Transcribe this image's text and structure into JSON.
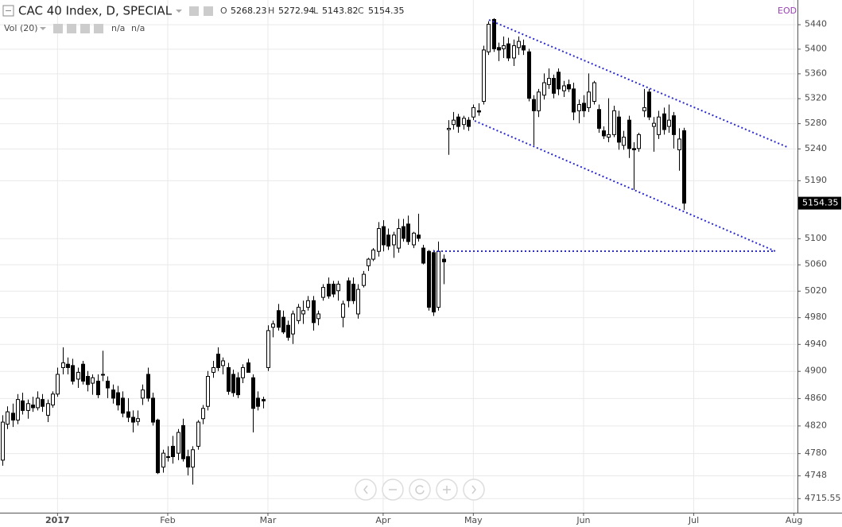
{
  "chart_data": {
    "type": "candlestick",
    "title": "CAC 40 Index, D, SPECIAL",
    "ohlc_labels": [
      "O",
      "H",
      "L",
      "C"
    ],
    "indicator": "Vol (20)",
    "indicator_values": [
      "n/a",
      "n/a"
    ],
    "data_source": "EOD",
    "up_color": "#ffffff",
    "down_color": "#000000",
    "edge_color": "#000000",
    "grid": true,
    "log_scale": true,
    "xlim": [
      -0.48,
      158.7
    ],
    "xticks": [
      {
        "value": 11,
        "label": "2017"
      },
      {
        "value": 33,
        "label": "Feb"
      },
      {
        "value": 53,
        "label": "Mar"
      },
      {
        "value": 76,
        "label": "Apr"
      },
      {
        "value": 94,
        "label": "May"
      },
      {
        "value": 116,
        "label": "Jun"
      },
      {
        "value": 138,
        "label": "Jul"
      },
      {
        "value": 158,
        "label": "Aug"
      }
    ],
    "ylim": [
      4695,
      5480
    ],
    "yticks": [
      5440,
      5400,
      5360,
      5320,
      5280,
      5240,
      5190,
      5100,
      5060,
      5020,
      4980,
      4940,
      4900,
      4860,
      4820,
      4780,
      4748,
      4715.55
    ],
    "values": [
      [
        4770,
        4835,
        4762,
        4825
      ],
      [
        4822,
        4848,
        4815,
        4840
      ],
      [
        4838,
        4852,
        4818,
        4828
      ],
      [
        4828,
        4866,
        4822,
        4858
      ],
      [
        4856,
        4868,
        4836,
        4842
      ],
      [
        4842,
        4858,
        4830,
        4852
      ],
      [
        4850,
        4862,
        4840,
        4846
      ],
      [
        4846,
        4870,
        4842,
        4860
      ],
      [
        4858,
        4866,
        4840,
        4848
      ],
      [
        4835,
        4858,
        4825,
        4852
      ],
      [
        4850,
        4870,
        4846,
        4866
      ],
      [
        4866,
        4905,
        4862,
        4895
      ],
      [
        4905,
        4935,
        4895,
        4912
      ],
      [
        4910,
        4920,
        4895,
        4905
      ],
      [
        4908,
        4918,
        4880,
        4885
      ],
      [
        4888,
        4905,
        4875,
        4898
      ],
      [
        4910,
        4915,
        4880,
        4885
      ],
      [
        4892,
        4900,
        4870,
        4880
      ],
      [
        4882,
        4895,
        4865,
        4890
      ],
      [
        4885,
        4895,
        4860,
        4865
      ],
      [
        4895,
        4930,
        4885,
        4895
      ],
      [
        4885,
        4892,
        4860,
        4875
      ],
      [
        4872,
        4880,
        4852,
        4860
      ],
      [
        4868,
        4878,
        4842,
        4850
      ],
      [
        4860,
        4870,
        4832,
        4838
      ],
      [
        4840,
        4860,
        4825,
        4832
      ],
      [
        4832,
        4842,
        4810,
        4825
      ],
      [
        4826,
        4842,
        4820,
        4830
      ],
      [
        4860,
        4880,
        4850,
        4872
      ],
      [
        4895,
        4905,
        4855,
        4860
      ],
      [
        4860,
        4868,
        4820,
        4825
      ],
      [
        4828,
        4830,
        4750,
        4752
      ],
      [
        4760,
        4785,
        4752,
        4780
      ],
      [
        4775,
        4790,
        4768,
        4775
      ],
      [
        4790,
        4805,
        4765,
        4775
      ],
      [
        4780,
        4815,
        4770,
        4810
      ],
      [
        4820,
        4830,
        4768,
        4772
      ],
      [
        4775,
        4785,
        4748,
        4760
      ],
      [
        4760,
        4790,
        4735,
        4785
      ],
      [
        4790,
        4828,
        4785,
        4825
      ],
      [
        4830,
        4850,
        4822,
        4845
      ],
      [
        4848,
        4900,
        4842,
        4892
      ],
      [
        4898,
        4915,
        4890,
        4905
      ],
      [
        4925,
        4935,
        4900,
        4905
      ],
      [
        4908,
        4920,
        4895,
        4915
      ],
      [
        4905,
        4912,
        4865,
        4870
      ],
      [
        4895,
        4902,
        4862,
        4868
      ],
      [
        4890,
        4898,
        4860,
        4865
      ],
      [
        4890,
        4910,
        4882,
        4905
      ],
      [
        4912,
        4918,
        4900,
        4898
      ],
      [
        4890,
        4895,
        4810,
        4845
      ],
      [
        4860,
        4870,
        4842,
        4848
      ],
      [
        4858,
        4862,
        4845,
        4856
      ],
      [
        4905,
        4968,
        4900,
        4960
      ],
      [
        4965,
        4975,
        4950,
        4970
      ],
      [
        4990,
        5000,
        4960,
        4965
      ],
      [
        4980,
        4990,
        4955,
        4958
      ],
      [
        4968,
        4975,
        4945,
        4950
      ],
      [
        4955,
        4990,
        4940,
        4985
      ],
      [
        4975,
        5000,
        4970,
        4995
      ],
      [
        4985,
        5005,
        4970,
        4990
      ],
      [
        4995,
        5012,
        4990,
        5005
      ],
      [
        5005,
        5012,
        4960,
        4972
      ],
      [
        4978,
        4990,
        4968,
        4985
      ],
      [
        5010,
        5030,
        5005,
        5025
      ],
      [
        5030,
        5040,
        5008,
        5012
      ],
      [
        5030,
        5035,
        5010,
        5015
      ],
      [
        5020,
        5035,
        5005,
        5030
      ],
      [
        4980,
        5005,
        4965,
        5000
      ],
      [
        5035,
        5040,
        4995,
        5005
      ],
      [
        5030,
        5040,
        5000,
        5005
      ],
      [
        4985,
        5030,
        4978,
        5022
      ],
      [
        5028,
        5050,
        5025,
        5045
      ],
      [
        5058,
        5070,
        5050,
        5068
      ],
      [
        5068,
        5085,
        5065,
        5082
      ],
      [
        5080,
        5125,
        5072,
        5115
      ],
      [
        5118,
        5128,
        5080,
        5090
      ],
      [
        5105,
        5115,
        5082,
        5088
      ],
      [
        5090,
        5110,
        5070,
        5105
      ],
      [
        5085,
        5130,
        5078,
        5115
      ],
      [
        5118,
        5130,
        5095,
        5100
      ],
      [
        5122,
        5135,
        5090,
        5095
      ],
      [
        5090,
        5110,
        5085,
        5108
      ],
      [
        5105,
        5138,
        5095,
        5100
      ],
      [
        5085,
        5090,
        5060,
        5062
      ],
      [
        5080,
        5082,
        4990,
        4995
      ],
      [
        5078,
        5082,
        4982,
        4988
      ],
      [
        4995,
        5095,
        4990,
        5080
      ],
      [
        5068,
        5075,
        5030,
        5064
      ],
      [
        5270,
        5285,
        5230,
        5272
      ],
      [
        5278,
        5298,
        5270,
        5285
      ],
      [
        5290,
        5295,
        5265,
        5275
      ],
      [
        5278,
        5292,
        5270,
        5288
      ],
      [
        5285,
        5290,
        5268,
        5275
      ],
      [
        5290,
        5310,
        5285,
        5305
      ],
      [
        5300,
        5312,
        5292,
        5298
      ],
      [
        5315,
        5405,
        5310,
        5398
      ],
      [
        5395,
        5445,
        5390,
        5440
      ],
      [
        5448,
        5450,
        5395,
        5400
      ],
      [
        5402,
        5410,
        5380,
        5398
      ],
      [
        5400,
        5420,
        5385,
        5405
      ],
      [
        5408,
        5418,
        5380,
        5385
      ],
      [
        5385,
        5415,
        5372,
        5405
      ],
      [
        5402,
        5420,
        5390,
        5412
      ],
      [
        5405,
        5415,
        5390,
        5398
      ],
      [
        5395,
        5400,
        5315,
        5320
      ],
      [
        5318,
        5325,
        5245,
        5300
      ],
      [
        5300,
        5335,
        5290,
        5330
      ],
      [
        5325,
        5360,
        5318,
        5345
      ],
      [
        5342,
        5368,
        5335,
        5352
      ],
      [
        5352,
        5358,
        5320,
        5328
      ],
      [
        5362,
        5368,
        5325,
        5335
      ],
      [
        5332,
        5348,
        5322,
        5340
      ],
      [
        5342,
        5350,
        5330,
        5335
      ],
      [
        5335,
        5345,
        5285,
        5298
      ],
      [
        5300,
        5318,
        5280,
        5310
      ],
      [
        5312,
        5325,
        5290,
        5300
      ],
      [
        5305,
        5360,
        5298,
        5330
      ],
      [
        5315,
        5348,
        5310,
        5345
      ],
      [
        5302,
        5310,
        5265,
        5272
      ],
      [
        5268,
        5275,
        5255,
        5260
      ],
      [
        5258,
        5320,
        5250,
        5262
      ],
      [
        5262,
        5308,
        5258,
        5300
      ],
      [
        5290,
        5300,
        5238,
        5250
      ],
      [
        5245,
        5268,
        5238,
        5258
      ],
      [
        5285,
        5292,
        5225,
        5240
      ],
      [
        5240,
        5250,
        5175,
        5238
      ],
      [
        5240,
        5265,
        5235,
        5262
      ],
      [
        5300,
        5335,
        5290,
        5305
      ],
      [
        5330,
        5335,
        5285,
        5290
      ],
      [
        5275,
        5290,
        5235,
        5280
      ],
      [
        5262,
        5300,
        5255,
        5290
      ],
      [
        5295,
        5305,
        5262,
        5270
      ],
      [
        5275,
        5310,
        5265,
        5285
      ],
      [
        5292,
        5298,
        5240,
        5262
      ],
      [
        5238,
        5272,
        5205,
        5255
      ],
      [
        5268.23,
        5272.94,
        5143.82,
        5154.35
      ]
    ]
  }
}
